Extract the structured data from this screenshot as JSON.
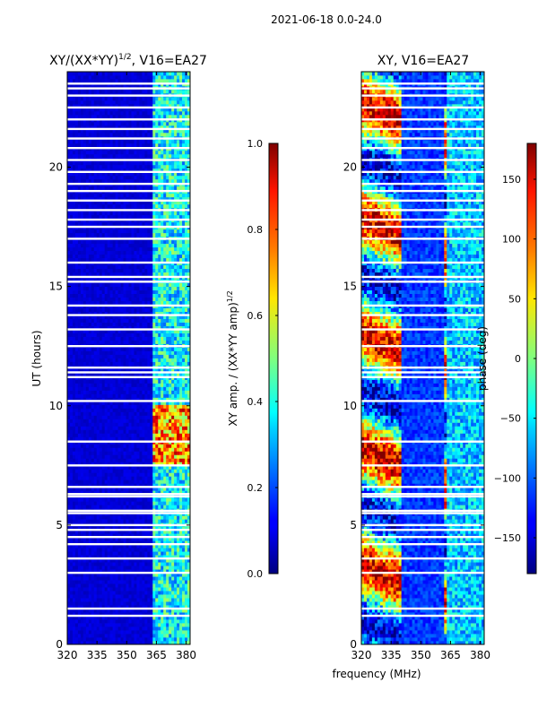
{
  "figure": {
    "suptitle": "2021-06-18 0.0-24.0",
    "xlabel": "frequency (MHz)"
  },
  "chart_data": [
    {
      "type": "heatmap",
      "title_main": "XY/(XX*YY)",
      "title_exp": "1/2",
      "title_tail": ", V16=EA27",
      "xlabel": "frequency (MHz)",
      "ylabel": "UT (hours)",
      "xlim": [
        320,
        382
      ],
      "ylim": [
        0,
        24
      ],
      "xticks": [
        "320",
        "335",
        "350",
        "365",
        "380"
      ],
      "yticks": [
        "0",
        "5",
        "10",
        "15",
        "20"
      ],
      "colorbar": {
        "label_main": "XY amp. / (XX*YY amp)",
        "label_exp": "1/2",
        "range": [
          0.0,
          1.0
        ],
        "ticks": [
          "0.0",
          "0.2",
          "0.4",
          "0.6",
          "0.8",
          "1.0"
        ]
      }
    },
    {
      "type": "heatmap",
      "title": "XY, V16=EA27",
      "xlabel": "frequency (MHz)",
      "ylabel": "",
      "xlim": [
        320,
        382
      ],
      "ylim": [
        0,
        24
      ],
      "xticks": [
        "320",
        "335",
        "350",
        "365",
        "380"
      ],
      "yticks": [
        "0",
        "5",
        "10",
        "15",
        "20"
      ],
      "colorbar": {
        "label": "phase (deg)",
        "range": [
          -180,
          180
        ],
        "ticks": [
          "−150",
          "−100",
          "−50",
          "0",
          "50",
          "100",
          "150"
        ]
      }
    }
  ],
  "flagged_hours": [
    1.2,
    1.5,
    3.0,
    3.6,
    4.2,
    4.5,
    4.8,
    5.0,
    5.5,
    5.6,
    6.2,
    6.3,
    6.6,
    7.5,
    8.5,
    10.2,
    11.2,
    11.4,
    11.6,
    12.5,
    13.2,
    13.8,
    14.2,
    15.2,
    15.4,
    16.0,
    17.0,
    17.5,
    17.8,
    18.2,
    18.6,
    19.0,
    19.3,
    19.8,
    20.3,
    20.8,
    21.2,
    21.6,
    22.0,
    22.5,
    23.0,
    23.3,
    23.5
  ]
}
